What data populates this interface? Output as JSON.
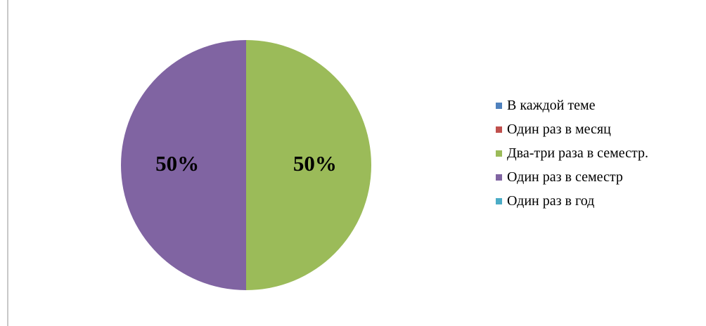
{
  "chart_data": {
    "type": "pie",
    "categories": [
      "В каждой теме",
      "Один раз в месяц",
      "Два-три раза в семестр.",
      "Один раз в семестр",
      "Один раз в год"
    ],
    "values": [
      0,
      0,
      50,
      50,
      0
    ],
    "colors": [
      "#4f81bd",
      "#c0504d",
      "#9bbb59",
      "#8064a2",
      "#4bacc6"
    ],
    "data_labels": [
      "",
      "",
      "50%",
      "50%",
      ""
    ],
    "unit": "%",
    "legend": "right"
  }
}
